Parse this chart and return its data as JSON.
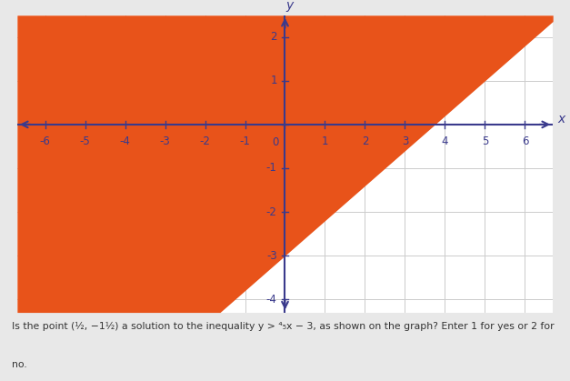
{
  "xlabel": "x",
  "ylabel": "y",
  "xlim": [
    -6.7,
    6.7
  ],
  "ylim": [
    -4.3,
    2.5
  ],
  "xticks": [
    -6,
    -5,
    -4,
    -3,
    -2,
    -1,
    0,
    1,
    2,
    3,
    4,
    5,
    6
  ],
  "yticks": [
    -4,
    -3,
    -2,
    -1,
    0,
    1,
    2
  ],
  "slope": 0.8,
  "intercept": -3,
  "shade_color": "#E8531A",
  "background_color": "#ffffff",
  "fig_bg": "#e8e8e8",
  "grid_color": "#cccccc",
  "axis_color": "#3a3a8c",
  "tick_label_color": "#3a3a8c",
  "question_line1": "Is the point (½, −1½) a solution to the inequality y > ⁴₅x − 3, as shown on the graph? Enter 1 for yes or 2 for",
  "question_line2": "no."
}
